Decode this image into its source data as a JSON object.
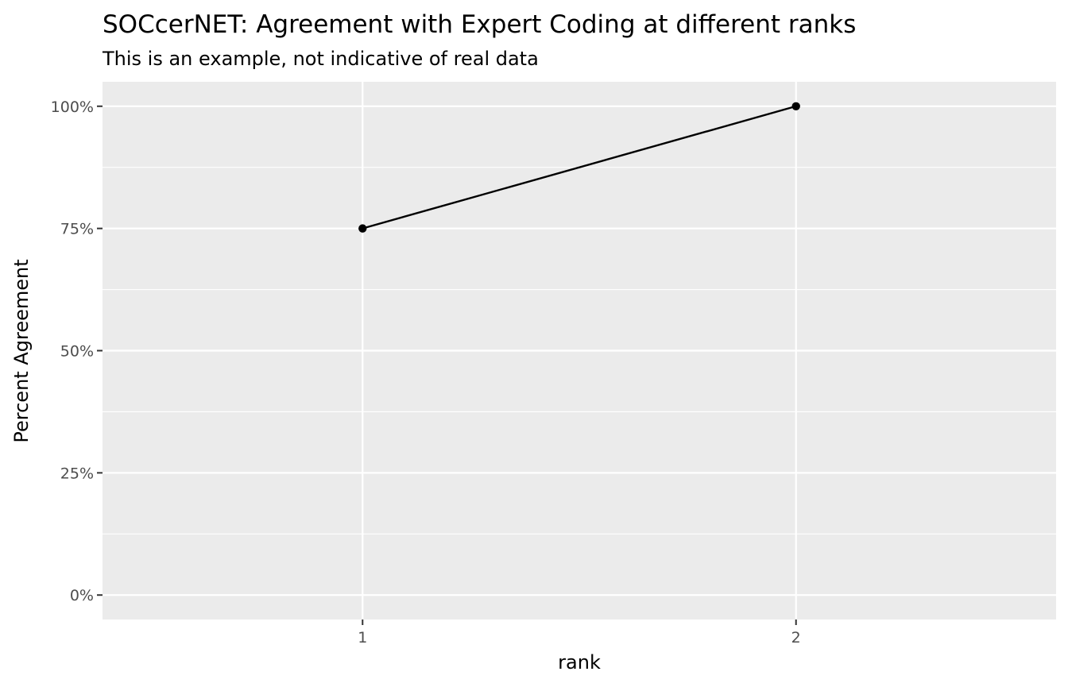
{
  "chart_data": {
    "type": "line",
    "title": "SOCcerNET: Agreement with Expert Coding at different ranks",
    "subtitle": "This is an example, not indicative of real data",
    "xlabel": "rank",
    "ylabel": "Percent Agreement",
    "x": [
      1,
      2
    ],
    "series": [
      {
        "values": [
          0.75,
          1.0
        ]
      }
    ],
    "xlim": [
      0.4,
      2.6
    ],
    "ylim": [
      -0.05,
      1.05
    ],
    "x_ticks": [
      1,
      2
    ],
    "x_tick_labels": [
      "1",
      "2"
    ],
    "y_ticks": [
      0,
      0.25,
      0.5,
      0.75,
      1.0
    ],
    "y_tick_labels": [
      "0%",
      "25%",
      "50%",
      "75%",
      "100%"
    ],
    "grid": true,
    "colors": {
      "panel_background": "#ebebeb",
      "grid_major": "#ffffff",
      "grid_minor": "#ffffff",
      "line": "#000000",
      "point": "#000000",
      "tick_text": "#4d4d4d",
      "tick_mark": "#333333"
    }
  }
}
